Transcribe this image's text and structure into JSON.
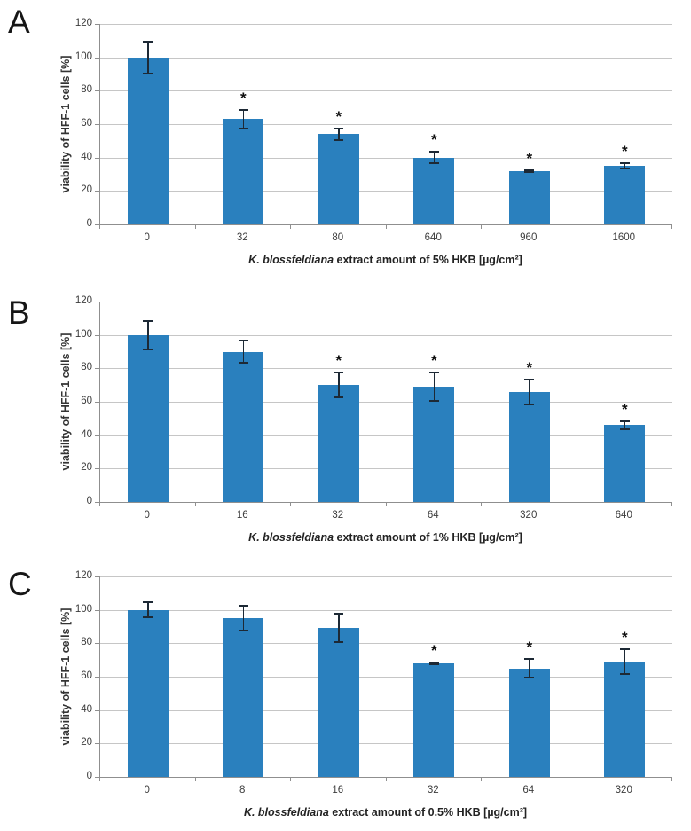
{
  "figure_title": "",
  "colors": {
    "bar": "#2a80be",
    "error_bar": "#1d2935",
    "gridline": "#c6c6c6",
    "axis": "#8f8f8f",
    "tick_text": "#3c3c3c",
    "sig_marker": "#0d0d0d"
  },
  "chart_data": [
    {
      "panel": "A",
      "type": "bar",
      "categories": [
        "0",
        "32",
        "80",
        "640",
        "960",
        "1600"
      ],
      "values": [
        100,
        63,
        54,
        40,
        32,
        35
      ],
      "errors": [
        10,
        6,
        4,
        4,
        1,
        2
      ],
      "significant": [
        false,
        true,
        true,
        true,
        true,
        true
      ],
      "sig_marker": "*",
      "ylabel": "viability of HFF-1 cells [%]",
      "xlabel_italic": "K. blossfeldiana",
      "xlabel_rest": " extract amount of 5% HKB [µg/cm²]",
      "ylim": [
        0,
        120
      ],
      "yticks": [
        0,
        20,
        40,
        60,
        80,
        100,
        120
      ],
      "grid": true,
      "legend": null
    },
    {
      "panel": "B",
      "type": "bar",
      "categories": [
        "0",
        "16",
        "32",
        "64",
        "320",
        "640"
      ],
      "values": [
        100,
        90,
        70,
        69,
        66,
        46
      ],
      "errors": [
        9,
        7,
        8,
        9,
        8,
        3
      ],
      "significant": [
        false,
        false,
        true,
        true,
        true,
        true
      ],
      "sig_marker": "*",
      "ylabel": "viability of HFF-1 cells [%]",
      "xlabel_italic": "K. blossfeldiana",
      "xlabel_rest": " extract amount of 1% HKB [µg/cm²]",
      "ylim": [
        0,
        120
      ],
      "yticks": [
        0,
        20,
        40,
        60,
        80,
        100,
        120
      ],
      "grid": true,
      "legend": null
    },
    {
      "panel": "C",
      "type": "bar",
      "categories": [
        "0",
        "8",
        "16",
        "32",
        "64",
        "320"
      ],
      "values": [
        100,
        95,
        89,
        68,
        65,
        69
      ],
      "errors": [
        5,
        8,
        9,
        1,
        6,
        8
      ],
      "significant": [
        false,
        false,
        false,
        true,
        true,
        true
      ],
      "sig_marker": "*",
      "ylabel": "viability of HFF-1 cells [%]",
      "xlabel_italic": "K. blossfeldiana",
      "xlabel_rest": " extract amount of 0.5% HKB [µg/cm²]",
      "ylim": [
        0,
        120
      ],
      "yticks": [
        0,
        20,
        40,
        60,
        80,
        100,
        120
      ],
      "grid": true,
      "legend": null
    }
  ]
}
